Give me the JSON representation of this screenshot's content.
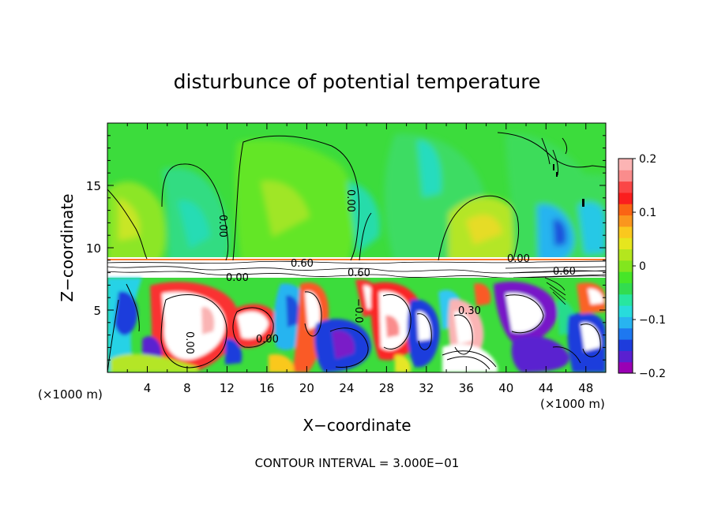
{
  "chart_data": {
    "type": "heatmap",
    "title": "disturbunce of potential temperature",
    "xlabel": "X−coordinate",
    "ylabel": "Z−coordinate",
    "x_unit_left": "(×1000 m)",
    "x_unit_right": "(×1000 m)",
    "xlim": [
      0,
      50
    ],
    "ylim": [
      0,
      20
    ],
    "x_ticks": [
      4,
      8,
      12,
      16,
      20,
      24,
      28,
      32,
      36,
      40,
      44,
      48
    ],
    "x_tick_labels": [
      "4",
      "8",
      "12",
      "16",
      "20",
      "24",
      "28",
      "32",
      "36",
      "40",
      "44",
      "48"
    ],
    "y_ticks": [
      5,
      10,
      15
    ],
    "y_tick_labels": [
      "5",
      "10",
      "15"
    ],
    "colorbar": {
      "range": [
        -0.2,
        0.2
      ],
      "ticks": [
        0.2,
        0.1,
        0,
        -0.1,
        -0.2
      ],
      "tick_labels": [
        "0.2",
        "0.1",
        "0",
        "−0.1",
        "−0.2"
      ],
      "colors": [
        "#9a00b4",
        "#5a20d0",
        "#1e3cdc",
        "#1e78f0",
        "#28b4f0",
        "#28dcdc",
        "#28e6a0",
        "#32dc50",
        "#46e628",
        "#82e61e",
        "#b4e61e",
        "#e6e61e",
        "#fac81e",
        "#fa961e",
        "#fa6414",
        "#fa1e1e",
        "#fa4646",
        "#fa8c8c",
        "#fcb4b4"
      ]
    },
    "contour_labels": [
      "0.00",
      "0.00",
      "0.00",
      "0.00",
      "0.60",
      "0.60",
      "0.60",
      "0.00",
      "0.00",
      "−0.0",
      "0.30"
    ],
    "annotation": "CONTOUR INTERVAL = 3.000E−01",
    "grid": false,
    "legend": "colorbar right"
  }
}
